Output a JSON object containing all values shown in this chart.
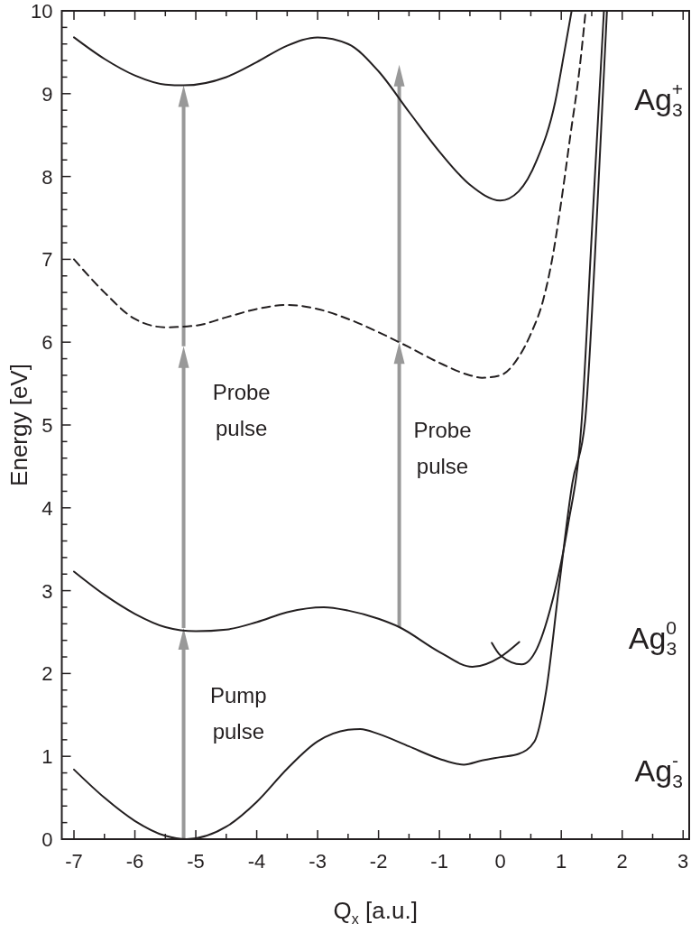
{
  "chart_data": {
    "type": "line",
    "xlabel": "Q$_{x}$ [a.u.]",
    "ylabel": "Energy [eV]",
    "xlim": [
      -7.2,
      3.1
    ],
    "ylim": [
      0,
      10
    ],
    "xticks": [
      -7,
      -6,
      -5,
      -4,
      -3,
      -2,
      -1,
      0,
      1,
      2,
      3
    ],
    "yticks": [
      0,
      1,
      2,
      3,
      4,
      5,
      6,
      7,
      8,
      9,
      10
    ],
    "grid": false,
    "marker": "none",
    "series": [
      {
        "color": "#231f20",
        "x": [
          -7,
          -6.5,
          -6,
          -5.5,
          -5.2,
          -4.5,
          -4,
          -3.5,
          -3,
          -2.5,
          -2,
          -1.5,
          -1,
          -0.5,
          0,
          0.3,
          0.6,
          0.9,
          1.05,
          1.17
        ],
        "values": [
          9.68,
          9.42,
          9.22,
          9.11,
          9.1,
          9.2,
          9.38,
          9.58,
          9.68,
          9.6,
          9.27,
          8.78,
          8.3,
          7.9,
          7.71,
          7.82,
          8.2,
          8.9,
          9.5,
          10
        ]
      },
      {
        "color": "#231f20",
        "line_style": "dashed",
        "x": [
          -7,
          -6.5,
          -6,
          -5.5,
          -5,
          -4.5,
          -4,
          -3.5,
          -3,
          -2.5,
          -2,
          -1.5,
          -1,
          -0.5,
          -0.3,
          0,
          0.3,
          0.5,
          0.7,
          0.85,
          1,
          1.15,
          1.3,
          1.4
        ],
        "values": [
          7,
          6.6,
          6.28,
          6.18,
          6.2,
          6.3,
          6.4,
          6.45,
          6.4,
          6.28,
          6.12,
          5.94,
          5.75,
          5.6,
          5.57,
          5.6,
          5.82,
          6.1,
          6.5,
          7,
          7.7,
          8.5,
          9.3,
          10
        ]
      },
      {
        "color": "#231f20",
        "x": [
          -7,
          -6.5,
          -6,
          -5.5,
          -5,
          -4.5,
          -4,
          -3.5,
          -2.9,
          -2.5,
          -2,
          -1.66,
          -1,
          -0.46,
          0,
          0.31
        ],
        "values": [
          3.23,
          2.95,
          2.72,
          2.56,
          2.51,
          2.53,
          2.62,
          2.74,
          2.8,
          2.76,
          2.66,
          2.56,
          2.26,
          2.08,
          2.2,
          2.38
        ]
      },
      {
        "color": "#231f20",
        "x": [
          -0.14,
          0,
          0.35,
          0.6,
          0.82,
          1,
          1.11,
          1.33,
          1.5,
          1.7
        ],
        "values": [
          2.37,
          2.22,
          2.11,
          2.3,
          2.78,
          3.35,
          3.79,
          5,
          7.3,
          10
        ]
      },
      {
        "color": "#231f20",
        "x": [
          -7,
          -6.5,
          -6,
          -5.5,
          -5.15,
          -4.5,
          -4,
          -3.5,
          -3,
          -2.5,
          -2.3,
          -2,
          -1.5,
          -1,
          -0.6,
          -0.3,
          0,
          0.3,
          0.56,
          0.75,
          0.96,
          1.18,
          1.39,
          1.55,
          1.75
        ],
        "values": [
          0.84,
          0.5,
          0.22,
          0.04,
          0,
          0.15,
          0.45,
          0.85,
          1.18,
          1.32,
          1.33,
          1.27,
          1.12,
          0.97,
          0.9,
          0.95,
          0.99,
          1.03,
          1.18,
          1.78,
          3.03,
          4.29,
          5.04,
          7,
          10
        ]
      }
    ],
    "annotations": [
      "Ag$_{3}$$^{+}$",
      "Ag$_{3}$$^{0}$",
      "Ag$_{3}$$^{-}$",
      "Probe pulse",
      "Probe pulse",
      "Pump pulse"
    ]
  }
}
